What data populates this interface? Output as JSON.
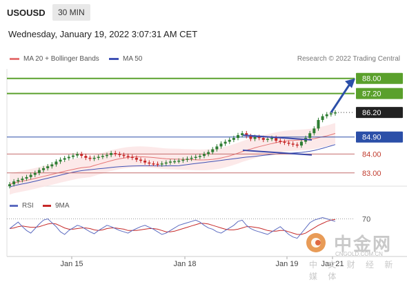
{
  "header": {
    "symbol": "USOUSD",
    "timeframe": "30 MIN",
    "datetime": "Wednesday, January 19, 2022 3:07:31 AM CET"
  },
  "legend": {
    "ma20_label": "MA 20 + Bollinger Bands",
    "ma50_label": "MA 50",
    "credit": "Research © 2022 Trading Central"
  },
  "rsi_legend": {
    "rsi_label": "RSI",
    "ma9_label": "9MA"
  },
  "watermark": {
    "name": "中金网",
    "url": "CNGOLD.COM.CN",
    "subtitle": "中 文 财 经 新 媒 体"
  },
  "colors": {
    "bull": "#2e7d32",
    "bear": "#c62828",
    "ma20": "#e57373",
    "ma50": "#3f51b5",
    "resistance": "#5aa02c",
    "support": "#c46b6b",
    "pivot": "#2b4fa8",
    "rsi": "#5c6bc0",
    "rsi_ma": "#c62828"
  },
  "chart_data": {
    "type": "candlestick",
    "x_tick_labels": [
      "Jan 15",
      "Jan 18",
      "Jan 19",
      "Jan 21"
    ],
    "ylim": [
      82.3,
      88.5
    ],
    "levels": [
      {
        "value": 88.0,
        "label": "88.00",
        "kind": "resistance"
      },
      {
        "value": 87.2,
        "label": "87.20",
        "kind": "resistance"
      },
      {
        "value": 86.2,
        "label": "86.20",
        "kind": "last_price"
      },
      {
        "value": 84.9,
        "label": "84.90",
        "kind": "pivot"
      },
      {
        "value": 84.0,
        "label": "84.00",
        "kind": "support"
      },
      {
        "value": 83.0,
        "label": "83.00",
        "kind": "support"
      }
    ],
    "series": [
      {
        "name": "MA 20 + Bollinger Bands",
        "type": "line_with_band"
      },
      {
        "name": "MA 50",
        "type": "line"
      }
    ],
    "closes": [
      82.4,
      82.55,
      82.62,
      82.7,
      82.78,
      82.9,
      83.0,
      83.15,
      83.25,
      83.35,
      83.45,
      83.6,
      83.7,
      83.78,
      83.85,
      83.92,
      84.0,
      83.9,
      83.8,
      83.75,
      83.8,
      83.85,
      83.9,
      83.95,
      84.05,
      84.0,
      83.95,
      83.9,
      83.85,
      83.8,
      83.7,
      83.65,
      83.55,
      83.5,
      83.48,
      83.45,
      83.5,
      83.55,
      83.6,
      83.62,
      83.65,
      83.7,
      83.75,
      83.8,
      83.85,
      83.9,
      84.0,
      84.1,
      84.25,
      84.4,
      84.55,
      84.65,
      84.75,
      84.85,
      85.0,
      85.1,
      84.95,
      84.8,
      84.9,
      84.85,
      84.75,
      84.8,
      84.85,
      84.7,
      84.65,
      84.6,
      84.55,
      84.5,
      84.45,
      84.65,
      84.85,
      85.1,
      85.35,
      85.8,
      86.0,
      86.1,
      86.15,
      86.2
    ],
    "rsi": {
      "levels": [
        70
      ],
      "level_labels": [
        "70"
      ],
      "rsi_values": [
        55,
        60,
        65,
        58,
        52,
        48,
        55,
        62,
        68,
        70,
        64,
        58,
        50,
        46,
        52,
        56,
        60,
        58,
        54,
        50,
        47,
        52,
        56,
        60,
        58,
        55,
        52,
        50,
        48,
        52,
        55,
        58,
        60,
        57,
        54,
        50,
        46,
        48,
        52,
        56,
        60,
        62,
        64,
        66,
        68,
        65,
        60,
        56,
        54,
        50,
        48,
        52,
        56,
        60,
        66,
        68,
        60,
        55,
        52,
        50,
        48,
        46,
        50,
        54,
        58,
        52,
        46,
        42,
        40,
        48,
        56,
        64,
        68,
        70,
        72,
        70,
        68,
        66
      ],
      "ma9_values": [
        55,
        56,
        58,
        59,
        58,
        57,
        57,
        58,
        60,
        62,
        63,
        62,
        59,
        56,
        54,
        54,
        55,
        56,
        56,
        55,
        53,
        52,
        53,
        55,
        56,
        56,
        55,
        54,
        52,
        52,
        52,
        53,
        54,
        55,
        55,
        54,
        52,
        50,
        50,
        51,
        53,
        55,
        57,
        59,
        61,
        63,
        63,
        62,
        60,
        58,
        56,
        54,
        53,
        53,
        54,
        56,
        58,
        58,
        57,
        56,
        54,
        52,
        51,
        51,
        52,
        52,
        50,
        48,
        46,
        46,
        48,
        52,
        56,
        60,
        63,
        66,
        68,
        69
      ]
    }
  }
}
